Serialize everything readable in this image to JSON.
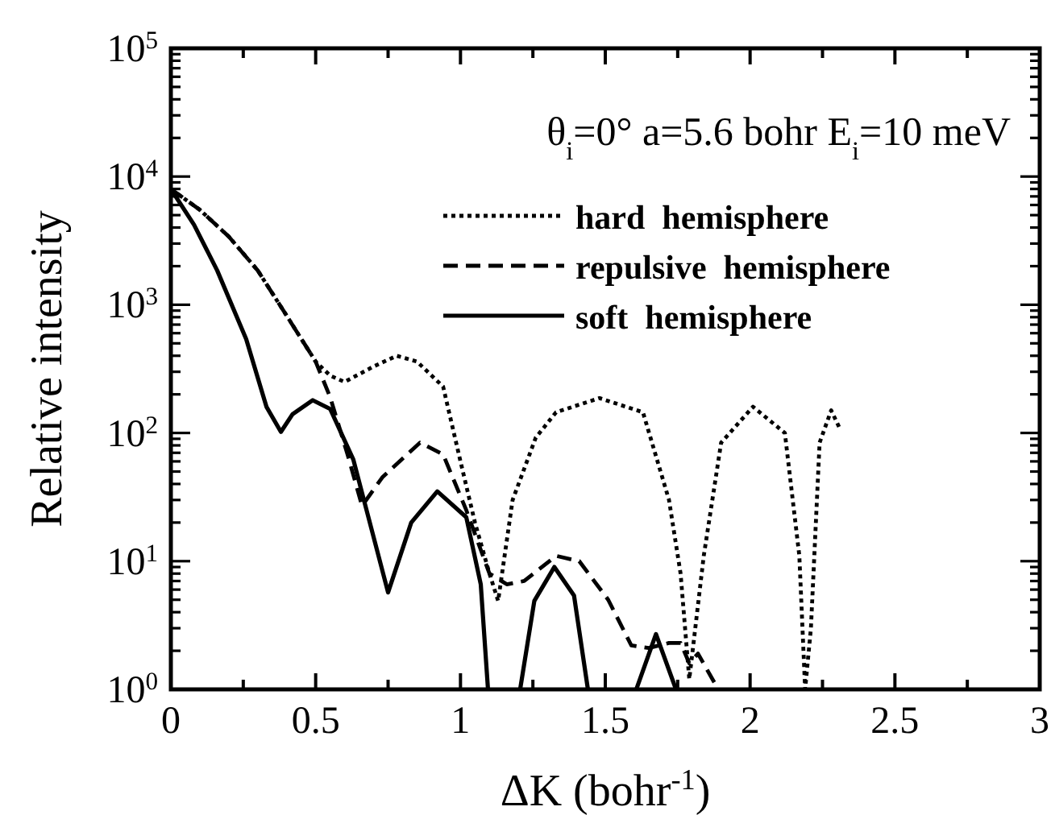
{
  "chart_data": {
    "type": "line",
    "xlabel": "ΔK  (bohr$^{-1}$)",
    "ylabel": "Relative intensity",
    "annotations": [
      "θ$_{i}$=0°  a=5.6 bohr  E$_{i}$=10 meV"
    ],
    "log": "y",
    "legend": "top right",
    "grid": false,
    "xlim": [
      0,
      3
    ],
    "xticks": [
      0,
      {
        "value": 0.25,
        "label": null
      },
      0.5,
      {
        "value": 0.75,
        "label": null
      },
      1,
      {
        "value": 1.25,
        "label": null
      },
      1.5,
      {
        "value": 1.75,
        "label": null
      },
      2,
      {
        "value": 2.25,
        "label": null
      },
      2.5,
      {
        "value": 2.75,
        "label": null
      },
      3
    ],
    "ylim": [
      1,
      100000
    ],
    "yticks": [
      {
        "value": 1,
        "label": "10$^{0}$"
      },
      {
        "value": 2,
        "label": null
      },
      {
        "value": 3,
        "label": null
      },
      {
        "value": 4,
        "label": null
      },
      {
        "value": 5,
        "label": null
      },
      {
        "value": 6,
        "label": null
      },
      {
        "value": 7,
        "label": null
      },
      {
        "value": 8,
        "label": null
      },
      {
        "value": 9,
        "label": null
      },
      {
        "value": 10,
        "label": "10$^{1}$"
      },
      {
        "value": 20,
        "label": null
      },
      {
        "value": 30,
        "label": null
      },
      {
        "value": 40,
        "label": null
      },
      {
        "value": 50,
        "label": null
      },
      {
        "value": 60,
        "label": null
      },
      {
        "value": 70,
        "label": null
      },
      {
        "value": 80,
        "label": null
      },
      {
        "value": 90,
        "label": null
      },
      {
        "value": 100,
        "label": "10$^{2}$"
      },
      {
        "value": 200,
        "label": null
      },
      {
        "value": 300,
        "label": null
      },
      {
        "value": 400,
        "label": null
      },
      {
        "value": 500,
        "label": null
      },
      {
        "value": 600,
        "label": null
      },
      {
        "value": 700,
        "label": null
      },
      {
        "value": 800,
        "label": null
      },
      {
        "value": 900,
        "label": null
      },
      {
        "value": 1000,
        "label": "10$^{3}$"
      },
      {
        "value": 2000,
        "label": null
      },
      {
        "value": 3000,
        "label": null
      },
      {
        "value": 4000,
        "label": null
      },
      {
        "value": 5000,
        "label": null
      },
      {
        "value": 6000,
        "label": null
      },
      {
        "value": 7000,
        "label": null
      },
      {
        "value": 8000,
        "label": null
      },
      {
        "value": 9000,
        "label": null
      },
      {
        "value": 10000,
        "label": "10$^{4}$"
      },
      {
        "value": 20000,
        "label": null
      },
      {
        "value": 30000,
        "label": null
      },
      {
        "value": 40000,
        "label": null
      },
      {
        "value": 50000,
        "label": null
      },
      {
        "value": 60000,
        "label": null
      },
      {
        "value": 70000,
        "label": null
      },
      {
        "value": 80000,
        "label": null
      },
      {
        "value": 90000,
        "label": null
      },
      {
        "value": 100000,
        "label": "10$^{5}$"
      }
    ],
    "series": [
      {
        "name": "hard  hemisphere",
        "color": "#000000",
        "line_style": "dotted",
        "x": [
          0,
          0.1,
          0.2,
          0.3,
          0.4,
          0.5,
          0.55,
          0.6,
          0.7,
          0.78,
          0.85,
          0.94,
          1.0,
          1.05,
          1.1,
          1.13,
          1.18,
          1.26,
          1.33,
          1.48,
          1.63,
          1.72,
          1.76,
          1.79,
          1.84,
          1.9,
          2.01,
          2.12,
          2.17,
          2.19,
          2.21,
          2.24,
          2.28,
          2.31
        ],
        "values": [
          8000,
          5500,
          3400,
          1850,
          820,
          360,
          280,
          250,
          330,
          400,
          360,
          230,
          60,
          20,
          8,
          4.9,
          30,
          92,
          145,
          187,
          145,
          30,
          8,
          1.2,
          11,
          84,
          160,
          100,
          11,
          1,
          3,
          84,
          150,
          108
        ]
      },
      {
        "name": "repulsive  hemisphere",
        "color": "#000000",
        "line_style": "dashed",
        "x": [
          0,
          0.1,
          0.2,
          0.3,
          0.4,
          0.5,
          0.55,
          0.61,
          0.66,
          0.73,
          0.86,
          0.94,
          1.02,
          1.1,
          1.16,
          1.22,
          1.33,
          1.41,
          1.51,
          1.59,
          1.65,
          1.72,
          1.76,
          1.79,
          1.82,
          1.89
        ],
        "values": [
          8000,
          5500,
          3400,
          1850,
          820,
          360,
          190,
          68,
          27,
          45,
          84,
          68,
          25,
          8,
          6.6,
          7,
          11,
          10,
          5,
          2.2,
          2.1,
          2.3,
          2.3,
          1.6,
          1.9,
          1
        ]
      },
      {
        "name": "soft  hemisphere",
        "color": "#000000",
        "line_style": "solid",
        "x": [
          0,
          0.08,
          0.16,
          0.26,
          0.33,
          0.38,
          0.42,
          0.49,
          0.55,
          0.63,
          0.75,
          0.83,
          0.92,
          1.02,
          1.07,
          1.095,
          1.15,
          1.206,
          1.255,
          1.324,
          1.392,
          1.44,
          1.52,
          1.607,
          1.675,
          1.744
        ],
        "values": [
          8000,
          4200,
          1850,
          540,
          160,
          102,
          140,
          180,
          154,
          62,
          5.7,
          20,
          35,
          22,
          6.6,
          1,
          null,
          1,
          4.9,
          9,
          5.4,
          1,
          null,
          1,
          2.7,
          1
        ]
      }
    ]
  }
}
